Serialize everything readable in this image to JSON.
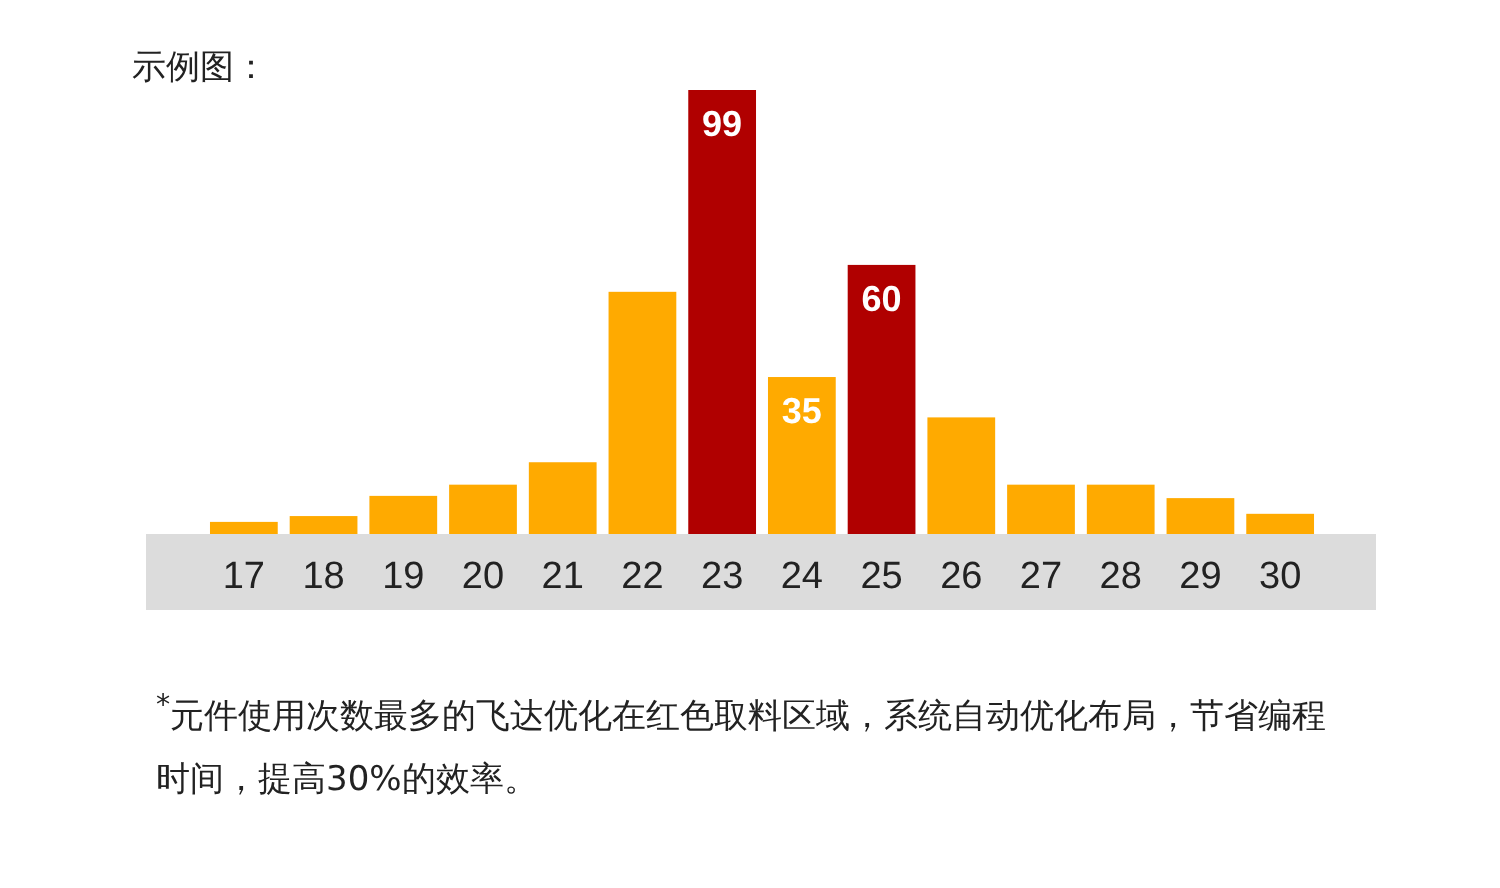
{
  "chart_data": {
    "type": "bar",
    "title": "示例图：",
    "categories": [
      "17",
      "18",
      "19",
      "20",
      "21",
      "22",
      "23",
      "24",
      "25",
      "26",
      "27",
      "28",
      "29",
      "30"
    ],
    "values": [
      2.7,
      4,
      8.5,
      11,
      16,
      54,
      99,
      35,
      60,
      26,
      11,
      11,
      8,
      4.5
    ],
    "value_labels": [
      null,
      null,
      null,
      null,
      null,
      null,
      "99",
      "35",
      "60",
      null,
      null,
      null,
      null,
      null
    ],
    "colors": [
      "#ffaa00",
      "#ffaa00",
      "#ffaa00",
      "#ffaa00",
      "#ffaa00",
      "#ffaa00",
      "#b00000",
      "#ffaa00",
      "#b00000",
      "#ffaa00",
      "#ffaa00",
      "#ffaa00",
      "#ffaa00",
      "#ffaa00"
    ],
    "annotations": [
      "$^{*}$元件使用次数最多的飞达优化在红色取料区域，系统自动优化布局，节省编程时间，提高30%的效率。"
    ]
  }
}
